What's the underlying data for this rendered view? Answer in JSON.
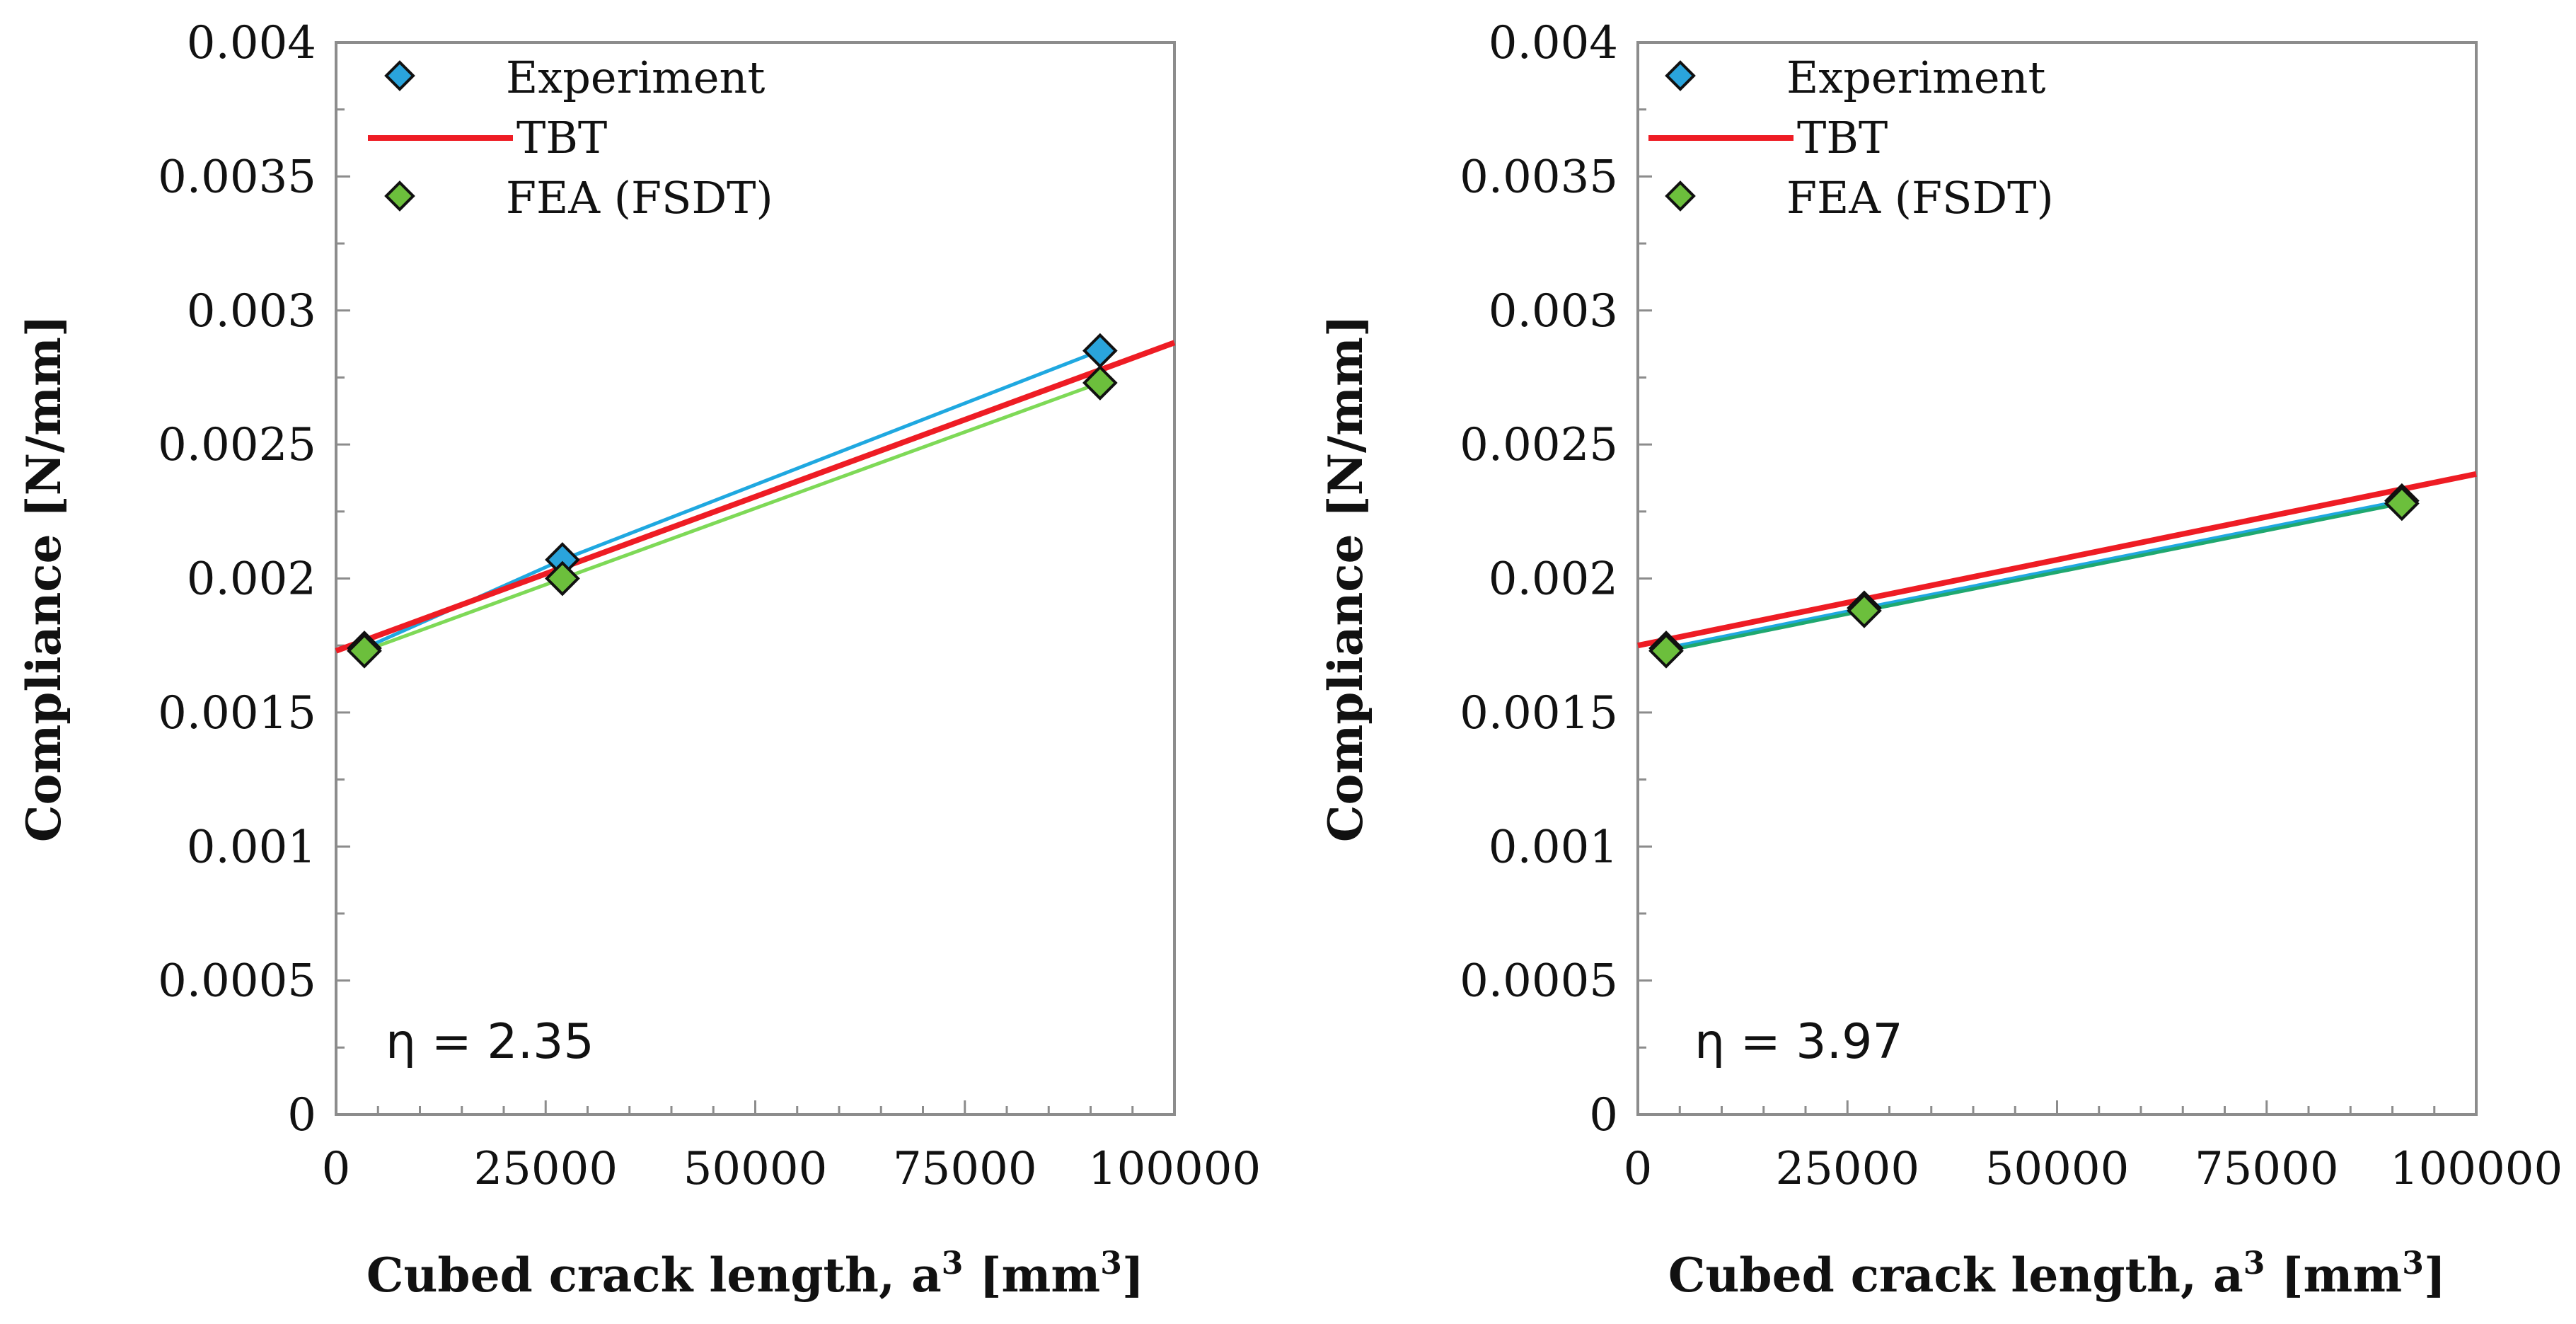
{
  "chart_data": [
    {
      "type": "line",
      "annotation": "η = 2.35",
      "xlabel": "Cubed crack length, a",
      "xlabel_sup": "3",
      "xlabel_suffix": " [mm",
      "xlabel_sup2": "3",
      "xlabel_end": "]",
      "ylabel": "Compliance [N/mm]",
      "xlim": [
        0,
        100000
      ],
      "ylim": [
        0,
        0.004
      ],
      "x_ticks": [
        "0",
        "25000",
        "50000",
        "75000",
        "100000"
      ],
      "y_ticks": [
        "0",
        "0.0005",
        "0.001",
        "0.0015",
        "0.002",
        "0.0025",
        "0.003",
        "0.0035",
        "0.004"
      ],
      "x_tick_values": [
        0,
        25000,
        50000,
        75000,
        100000
      ],
      "y_tick_values": [
        0,
        0.0005,
        0.001,
        0.0015,
        0.002,
        0.0025,
        0.003,
        0.0035,
        0.004
      ],
      "legend": [
        "Experiment",
        "TBT",
        "FEA (FSDT)"
      ],
      "legend_position": "top-left",
      "series": [
        {
          "name": "Experiment",
          "kind": "markers+line",
          "color": "#1fa8e0",
          "marker": "#2aa4dc",
          "x": [
            3375,
            27000,
            91125
          ],
          "y": [
            0.00174,
            0.00207,
            0.00285
          ]
        },
        {
          "name": "TBT",
          "kind": "line",
          "color": "#ee1c24",
          "x": [
            0,
            100000
          ],
          "y": [
            0.00173,
            0.00288
          ]
        },
        {
          "name": "FEA (FSDT)",
          "kind": "markers+line",
          "color": "#7ed957",
          "marker": "#6cbf3c",
          "x": [
            3375,
            27000,
            91125
          ],
          "y": [
            0.00173,
            0.002,
            0.00273
          ]
        }
      ]
    },
    {
      "type": "line",
      "annotation": "η = 3.97",
      "xlabel": "Cubed crack length, a",
      "xlabel_sup": "3",
      "xlabel_suffix": " [mm",
      "xlabel_sup2": "3",
      "xlabel_end": "]",
      "ylabel": "Compliance [N/mm]",
      "xlim": [
        0,
        100000
      ],
      "ylim": [
        0,
        0.004
      ],
      "x_ticks": [
        "0",
        "25000",
        "50000",
        "75000",
        "100000"
      ],
      "y_ticks": [
        "0",
        "0.0005",
        "0.001",
        "0.0015",
        "0.002",
        "0.0025",
        "0.003",
        "0.0035",
        "0.004"
      ],
      "x_tick_values": [
        0,
        25000,
        50000,
        75000,
        100000
      ],
      "y_tick_values": [
        0,
        0.0005,
        0.001,
        0.0015,
        0.002,
        0.0025,
        0.003,
        0.0035,
        0.004
      ],
      "legend": [
        "Experiment",
        "TBT",
        "FEA (FSDT)"
      ],
      "legend_position": "top-left",
      "series": [
        {
          "name": "Experiment",
          "kind": "markers+line",
          "color": "#1fa8e0",
          "marker": "#2aa4dc",
          "x": [
            3375,
            27000,
            91125
          ],
          "y": [
            0.00174,
            0.00189,
            0.00229
          ]
        },
        {
          "name": "TBT",
          "kind": "line",
          "color": "#ee1c24",
          "x": [
            0,
            100000
          ],
          "y": [
            0.00175,
            0.00239
          ]
        },
        {
          "name": "FEA (FSDT)",
          "kind": "markers+line",
          "color": "#1fa870",
          "marker": "#6cbf3c",
          "x": [
            3375,
            27000,
            91125
          ],
          "y": [
            0.00173,
            0.00188,
            0.00228
          ]
        }
      ]
    }
  ]
}
